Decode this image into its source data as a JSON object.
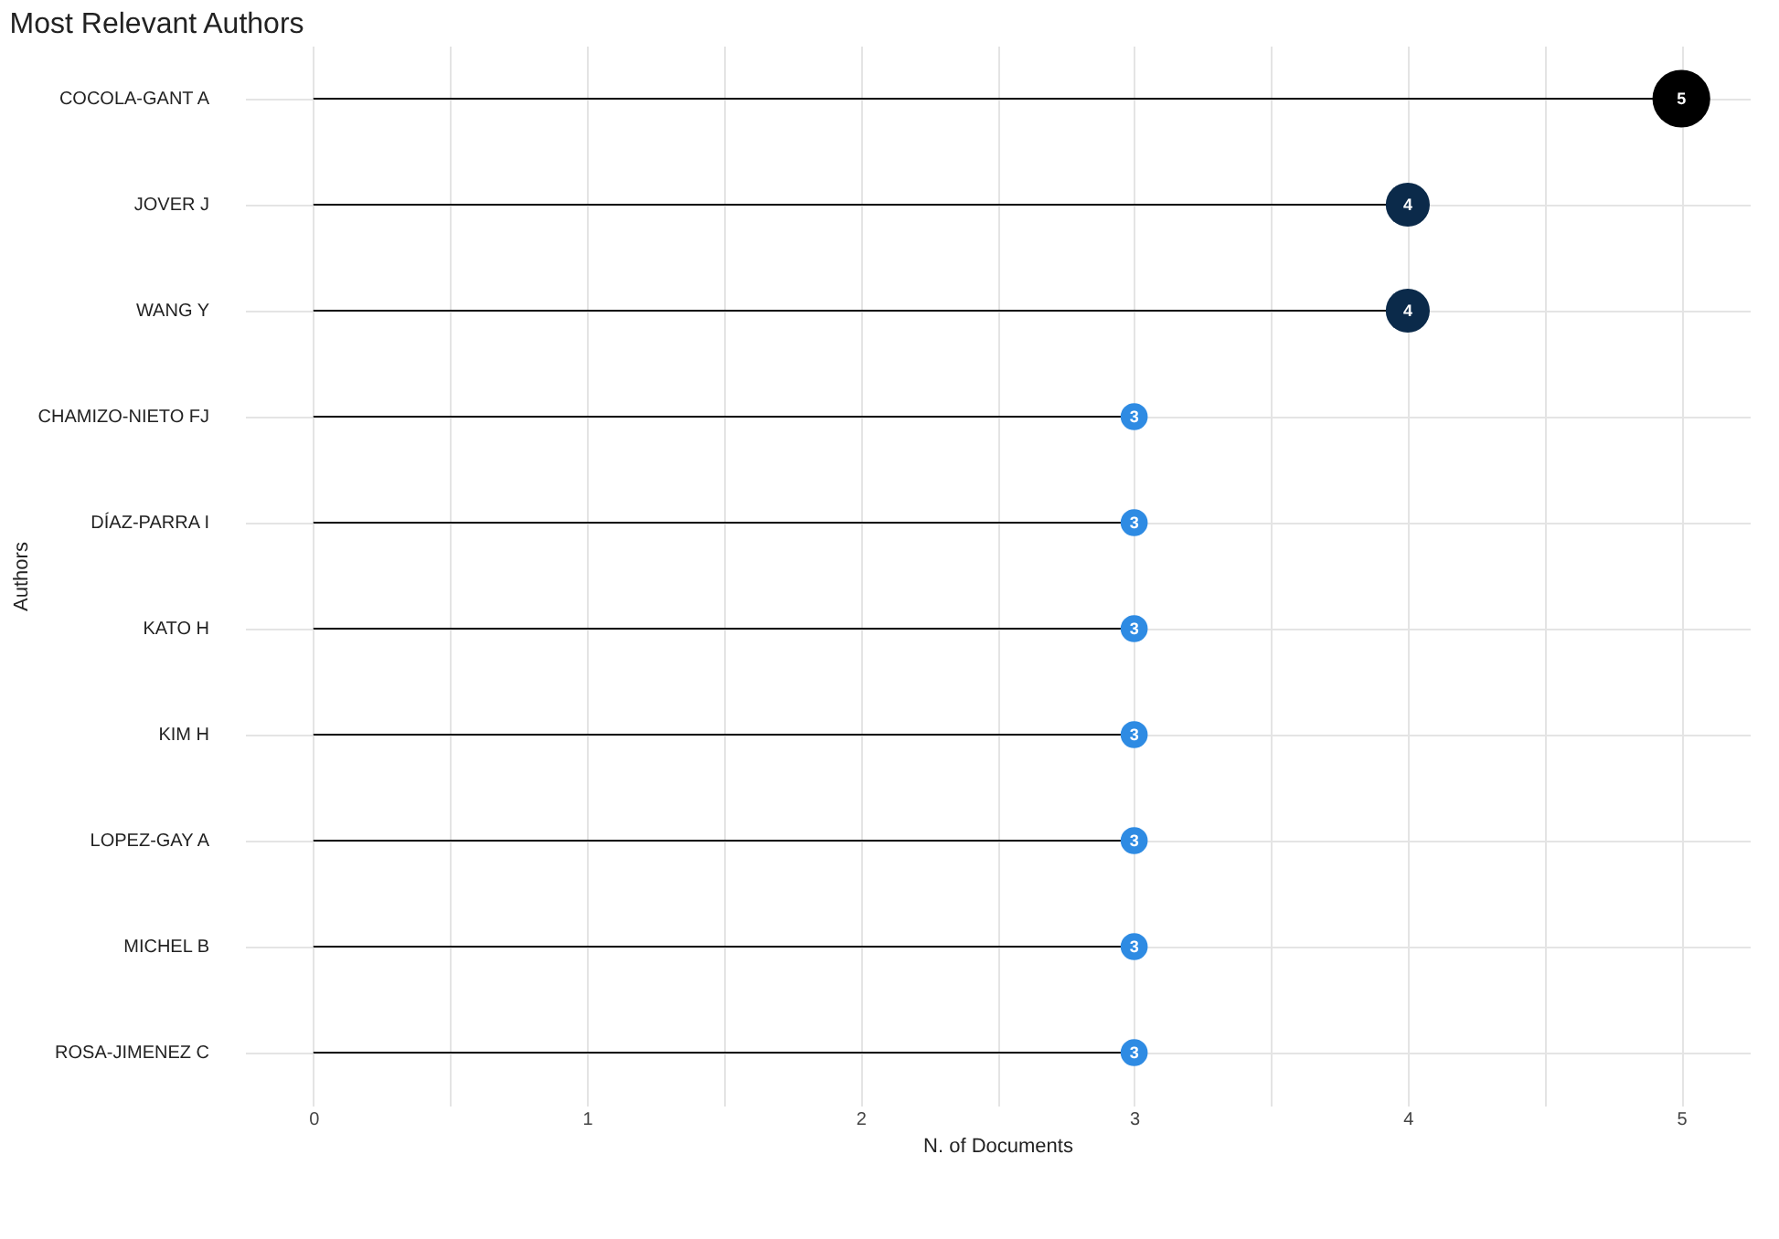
{
  "chart_data": {
    "type": "lollipop",
    "orientation": "horizontal",
    "title": "Most Relevant Authors",
    "xlabel": "N. of Documents",
    "ylabel": "Authors",
    "categories": [
      "COCOLA-GANT A",
      "JOVER J",
      "WANG Y",
      "CHAMIZO-NIETO FJ",
      "DÍAZ-PARRA I",
      "KATO H",
      "KIM H",
      "LOPEZ-GAY A",
      "MICHEL B",
      "ROSA-JIMENEZ C"
    ],
    "values": [
      5,
      4,
      4,
      3,
      3,
      3,
      3,
      3,
      3,
      3
    ],
    "sizes": [
      1,
      0.58,
      0.58,
      0.22,
      0.22,
      0.22,
      0.22,
      0.22,
      0.22,
      0.22
    ],
    "colors": [
      "#000000",
      "#0b2a4a",
      "#0b2a4a",
      "#2e8be3",
      "#2e8be3",
      "#2e8be3",
      "#2e8be3",
      "#2e8be3",
      "#2e8be3",
      "#2e8be3"
    ],
    "xlim": [
      -0.25,
      5.25
    ],
    "xticks": [
      0,
      {
        "value": 0.5,
        "label": null
      },
      1,
      {
        "value": 1.5,
        "label": null
      },
      2,
      {
        "value": 2.5,
        "label": null
      },
      3,
      {
        "value": 3.5,
        "label": null
      },
      4,
      {
        "value": 4.5,
        "label": null
      },
      5
    ],
    "grid": true,
    "legend": false,
    "data_labels": true
  }
}
